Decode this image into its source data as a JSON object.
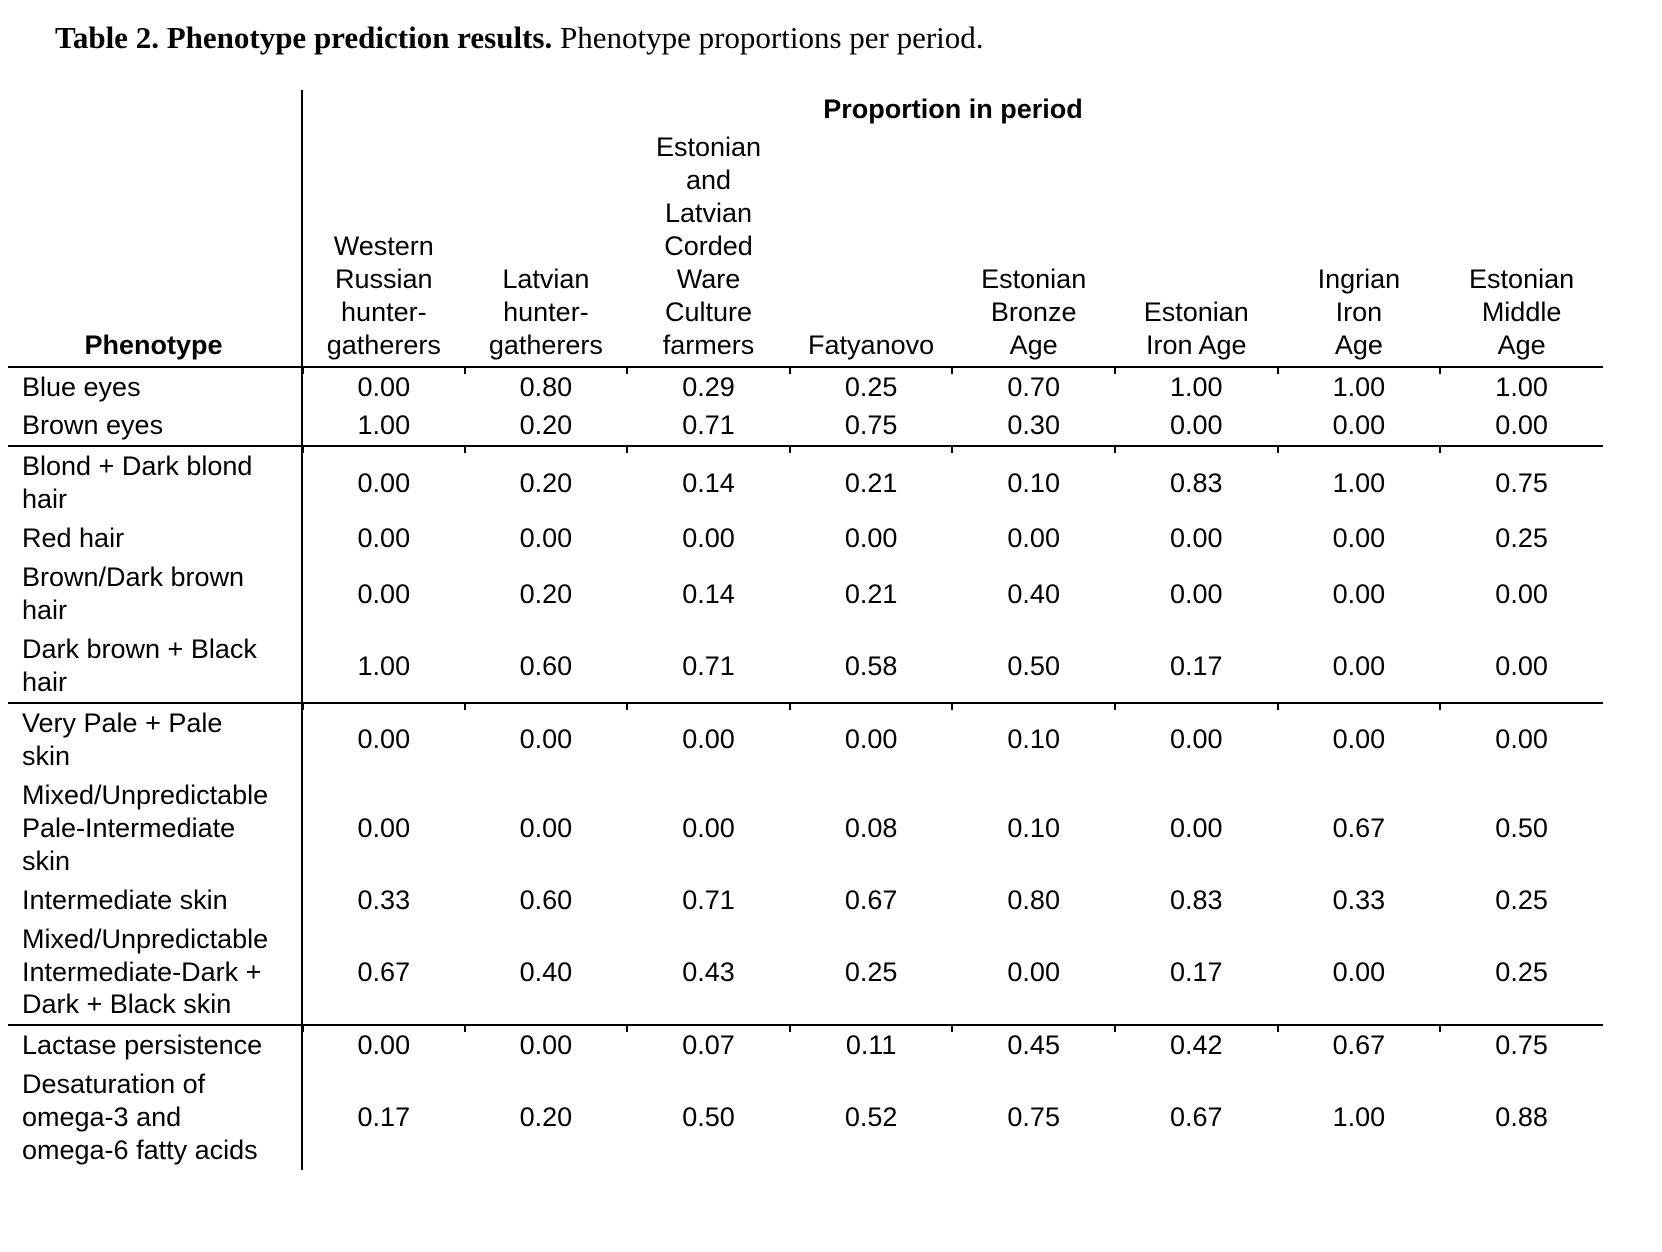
{
  "caption": {
    "bold": "Table 2. Phenotype prediction results.",
    "normal": "Phenotype proportions per period."
  },
  "table": {
    "span_header": "Proportion in period",
    "phenotype_header": "Phenotype",
    "columns": [
      "Western\nRussian\nhunter-\ngatherers",
      "Latvian\nhunter-\ngatherers",
      "Estonian\nand\nLatvian\nCorded\nWare\nCulture\nfarmers",
      "Fatyanovo",
      "Estonian\nBronze\nAge",
      "Estonian\nIron Age",
      "Ingrian\nIron\nAge",
      "Estonian\nMiddle\nAge"
    ],
    "rows": [
      {
        "label": "Blue eyes",
        "values": [
          "0.00",
          "0.80",
          "0.29",
          "0.25",
          "0.70",
          "1.00",
          "1.00",
          "1.00"
        ]
      },
      {
        "label": "Brown eyes",
        "values": [
          "1.00",
          "0.20",
          "0.71",
          "0.75",
          "0.30",
          "0.00",
          "0.00",
          "0.00"
        ]
      },
      {
        "label": "Blond + Dark blond\nhair",
        "values": [
          "0.00",
          "0.20",
          "0.14",
          "0.21",
          "0.10",
          "0.83",
          "1.00",
          "0.75"
        ]
      },
      {
        "label": "Red hair",
        "values": [
          "0.00",
          "0.00",
          "0.00",
          "0.00",
          "0.00",
          "0.00",
          "0.00",
          "0.25"
        ]
      },
      {
        "label": "Brown/Dark brown\nhair",
        "values": [
          "0.00",
          "0.20",
          "0.14",
          "0.21",
          "0.40",
          "0.00",
          "0.00",
          "0.00"
        ]
      },
      {
        "label": "Dark brown + Black\nhair",
        "values": [
          "1.00",
          "0.60",
          "0.71",
          "0.58",
          "0.50",
          "0.17",
          "0.00",
          "0.00"
        ]
      },
      {
        "label": "Very Pale + Pale\nskin",
        "values": [
          "0.00",
          "0.00",
          "0.00",
          "0.00",
          "0.10",
          "0.00",
          "0.00",
          "0.00"
        ]
      },
      {
        "label": "Mixed/Unpredictable\nPale-Intermediate\nskin",
        "values": [
          "0.00",
          "0.00",
          "0.00",
          "0.08",
          "0.10",
          "0.00",
          "0.67",
          "0.50"
        ]
      },
      {
        "label": "Intermediate skin",
        "values": [
          "0.33",
          "0.60",
          "0.71",
          "0.67",
          "0.80",
          "0.83",
          "0.33",
          "0.25"
        ]
      },
      {
        "label": "Mixed/Unpredictable\nIntermediate-Dark +\nDark + Black skin",
        "values": [
          "0.67",
          "0.40",
          "0.43",
          "0.25",
          "0.00",
          "0.17",
          "0.00",
          "0.25"
        ]
      },
      {
        "label": "Lactase persistence",
        "values": [
          "0.00",
          "0.00",
          "0.07",
          "0.11",
          "0.45",
          "0.42",
          "0.67",
          "0.75"
        ]
      },
      {
        "label": "Desaturation of\nomega-3 and\nomega-6 fatty acids",
        "values": [
          "0.17",
          "0.20",
          "0.50",
          "0.52",
          "0.75",
          "0.67",
          "1.00",
          "0.88"
        ]
      }
    ]
  }
}
